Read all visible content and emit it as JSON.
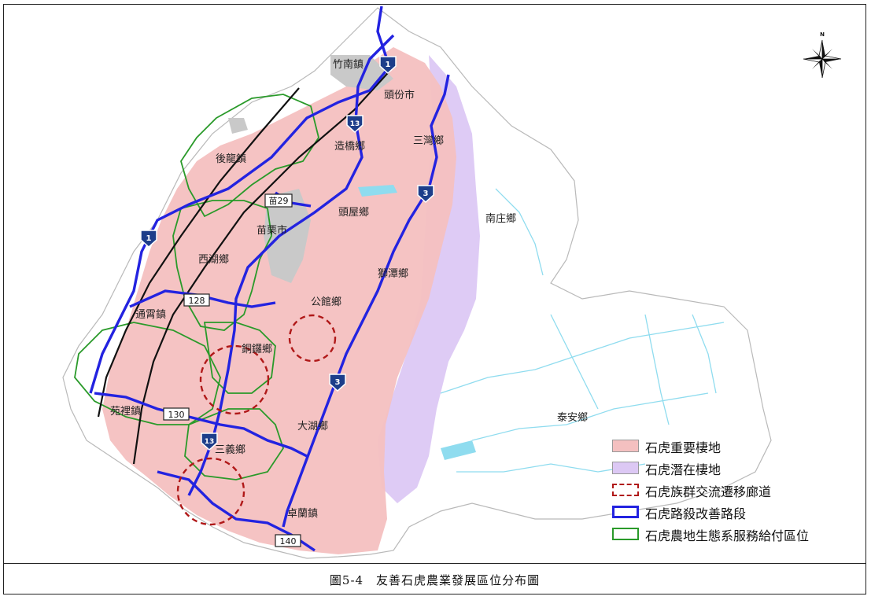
{
  "figure": {
    "caption": "圖5-4　友善石虎農業發展區位分布圖"
  },
  "compass": {
    "north_label": "N",
    "icon": "compass-rose-icon"
  },
  "places": [
    "竹南鎮",
    "頭份市",
    "造橋鄉",
    "三灣鄉",
    "後龍鎮",
    "苗栗市",
    "頭屋鄉",
    "南庄鄉",
    "西湖鄉",
    "獅潭鄉",
    "公館鄉",
    "通霄鎮",
    "銅鑼鄉",
    "泰安鄉",
    "苑裡鎮",
    "大湖鄉",
    "三義鄉",
    "卓蘭鎮"
  ],
  "road_shields": {
    "freeway_1": "1",
    "freeway_3": "3",
    "freeway_13": "13",
    "county_29": "苗29",
    "provincial_128": "128",
    "provincial_130": "130",
    "provincial_140": "140"
  },
  "legend": [
    {
      "label": "石虎重要棲地",
      "color": "#f4c0c0"
    },
    {
      "label": "石虎潛在棲地",
      "color": "#dcc8f4"
    },
    {
      "label": "石虎族群交流遷移廊道",
      "color": "#b01818"
    },
    {
      "label": "石虎路殺改善路段",
      "color": "#2323e0"
    },
    {
      "label": "石虎農地生態系服務給付區位",
      "color": "#2a9a2a"
    }
  ]
}
